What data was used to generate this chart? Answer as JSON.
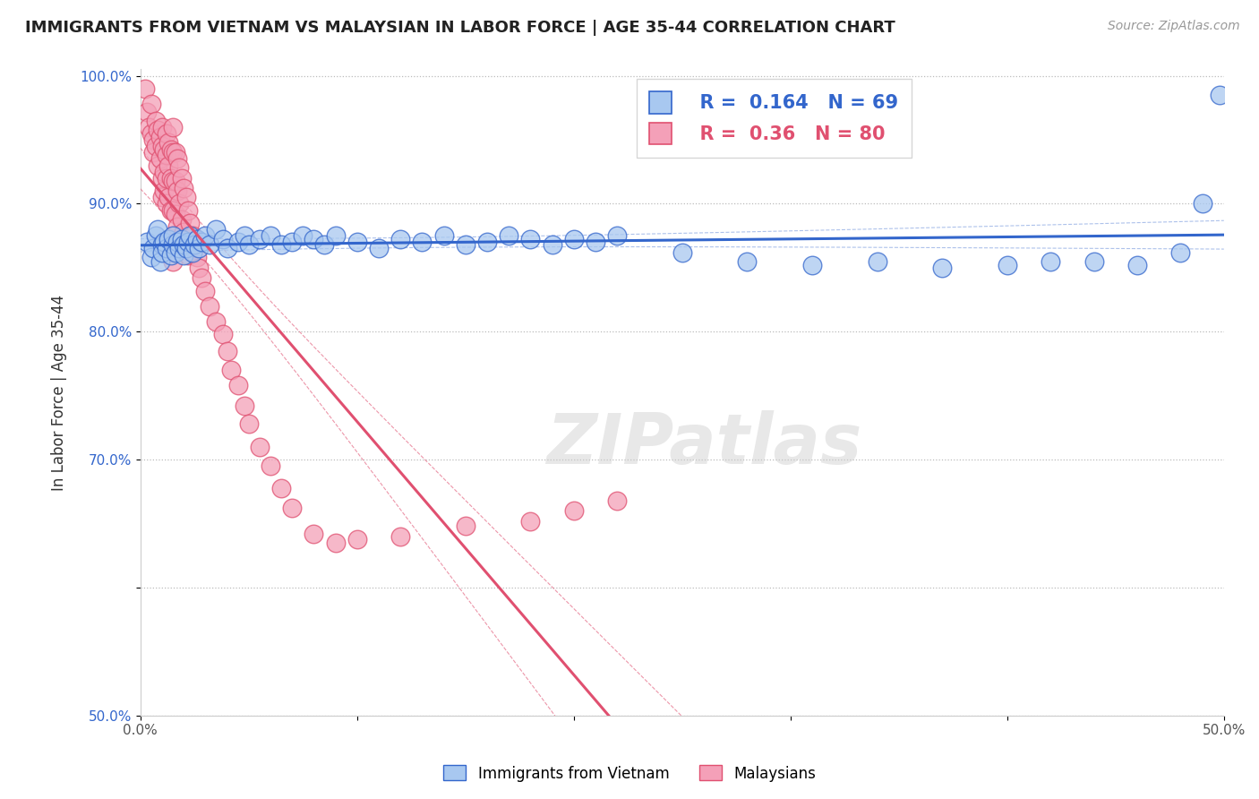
{
  "title": "IMMIGRANTS FROM VIETNAM VS MALAYSIAN IN LABOR FORCE | AGE 35-44 CORRELATION CHART",
  "source": "Source: ZipAtlas.com",
  "ylabel": "In Labor Force | Age 35-44",
  "xlim": [
    0.0,
    0.5
  ],
  "ylim": [
    0.5,
    1.005
  ],
  "xticks": [
    0.0,
    0.1,
    0.2,
    0.3,
    0.4,
    0.5
  ],
  "xticklabels": [
    "0.0%",
    "",
    "",
    "",
    "",
    "50.0%"
  ],
  "yticks": [
    0.5,
    0.6,
    0.7,
    0.8,
    0.9,
    1.0
  ],
  "yticklabels": [
    "50.0%",
    "",
    "70.0%",
    "80.0%",
    "90.0%",
    "100.0%"
  ],
  "blue_color": "#A8C8F0",
  "pink_color": "#F4A0B8",
  "blue_line_color": "#3366CC",
  "pink_line_color": "#E05070",
  "R_blue": 0.164,
  "N_blue": 69,
  "R_pink": 0.36,
  "N_pink": 80,
  "legend_label_blue": "Immigrants from Vietnam",
  "legend_label_pink": "Malaysians",
  "watermark": "ZIPatlas",
  "blue_scatter": [
    [
      0.003,
      0.87
    ],
    [
      0.005,
      0.858
    ],
    [
      0.006,
      0.865
    ],
    [
      0.007,
      0.875
    ],
    [
      0.008,
      0.88
    ],
    [
      0.009,
      0.855
    ],
    [
      0.01,
      0.868
    ],
    [
      0.01,
      0.862
    ],
    [
      0.011,
      0.87
    ],
    [
      0.012,
      0.865
    ],
    [
      0.013,
      0.872
    ],
    [
      0.014,
      0.86
    ],
    [
      0.015,
      0.868
    ],
    [
      0.015,
      0.875
    ],
    [
      0.016,
      0.862
    ],
    [
      0.017,
      0.87
    ],
    [
      0.018,
      0.865
    ],
    [
      0.019,
      0.872
    ],
    [
      0.02,
      0.86
    ],
    [
      0.02,
      0.868
    ],
    [
      0.021,
      0.865
    ],
    [
      0.022,
      0.87
    ],
    [
      0.023,
      0.875
    ],
    [
      0.024,
      0.862
    ],
    [
      0.025,
      0.868
    ],
    [
      0.026,
      0.872
    ],
    [
      0.027,
      0.865
    ],
    [
      0.028,
      0.87
    ],
    [
      0.03,
      0.875
    ],
    [
      0.032,
      0.868
    ],
    [
      0.035,
      0.88
    ],
    [
      0.038,
      0.872
    ],
    [
      0.04,
      0.865
    ],
    [
      0.045,
      0.87
    ],
    [
      0.048,
      0.875
    ],
    [
      0.05,
      0.868
    ],
    [
      0.055,
      0.872
    ],
    [
      0.06,
      0.875
    ],
    [
      0.065,
      0.868
    ],
    [
      0.07,
      0.87
    ],
    [
      0.075,
      0.875
    ],
    [
      0.08,
      0.872
    ],
    [
      0.085,
      0.868
    ],
    [
      0.09,
      0.875
    ],
    [
      0.1,
      0.87
    ],
    [
      0.11,
      0.865
    ],
    [
      0.12,
      0.872
    ],
    [
      0.13,
      0.87
    ],
    [
      0.14,
      0.875
    ],
    [
      0.15,
      0.868
    ],
    [
      0.16,
      0.87
    ],
    [
      0.17,
      0.875
    ],
    [
      0.18,
      0.872
    ],
    [
      0.19,
      0.868
    ],
    [
      0.2,
      0.872
    ],
    [
      0.21,
      0.87
    ],
    [
      0.22,
      0.875
    ],
    [
      0.25,
      0.862
    ],
    [
      0.28,
      0.855
    ],
    [
      0.31,
      0.852
    ],
    [
      0.34,
      0.855
    ],
    [
      0.37,
      0.85
    ],
    [
      0.4,
      0.852
    ],
    [
      0.42,
      0.855
    ],
    [
      0.44,
      0.855
    ],
    [
      0.46,
      0.852
    ],
    [
      0.48,
      0.862
    ],
    [
      0.49,
      0.9
    ],
    [
      0.498,
      0.985
    ]
  ],
  "pink_scatter": [
    [
      0.002,
      0.99
    ],
    [
      0.003,
      0.972
    ],
    [
      0.004,
      0.96
    ],
    [
      0.005,
      0.978
    ],
    [
      0.005,
      0.955
    ],
    [
      0.006,
      0.95
    ],
    [
      0.006,
      0.94
    ],
    [
      0.007,
      0.965
    ],
    [
      0.007,
      0.945
    ],
    [
      0.008,
      0.958
    ],
    [
      0.008,
      0.93
    ],
    [
      0.009,
      0.952
    ],
    [
      0.009,
      0.935
    ],
    [
      0.01,
      0.96
    ],
    [
      0.01,
      0.945
    ],
    [
      0.01,
      0.92
    ],
    [
      0.01,
      0.905
    ],
    [
      0.011,
      0.942
    ],
    [
      0.011,
      0.925
    ],
    [
      0.011,
      0.91
    ],
    [
      0.012,
      0.955
    ],
    [
      0.012,
      0.938
    ],
    [
      0.012,
      0.92
    ],
    [
      0.012,
      0.9
    ],
    [
      0.013,
      0.948
    ],
    [
      0.013,
      0.93
    ],
    [
      0.013,
      0.905
    ],
    [
      0.014,
      0.942
    ],
    [
      0.014,
      0.92
    ],
    [
      0.014,
      0.895
    ],
    [
      0.015,
      0.96
    ],
    [
      0.015,
      0.94
    ],
    [
      0.015,
      0.918
    ],
    [
      0.015,
      0.895
    ],
    [
      0.015,
      0.875
    ],
    [
      0.015,
      0.855
    ],
    [
      0.016,
      0.94
    ],
    [
      0.016,
      0.918
    ],
    [
      0.016,
      0.892
    ],
    [
      0.017,
      0.935
    ],
    [
      0.017,
      0.91
    ],
    [
      0.017,
      0.882
    ],
    [
      0.018,
      0.928
    ],
    [
      0.018,
      0.9
    ],
    [
      0.018,
      0.87
    ],
    [
      0.019,
      0.92
    ],
    [
      0.019,
      0.888
    ],
    [
      0.02,
      0.912
    ],
    [
      0.02,
      0.878
    ],
    [
      0.021,
      0.905
    ],
    [
      0.021,
      0.87
    ],
    [
      0.022,
      0.895
    ],
    [
      0.022,
      0.86
    ],
    [
      0.023,
      0.885
    ],
    [
      0.024,
      0.875
    ],
    [
      0.025,
      0.865
    ],
    [
      0.026,
      0.858
    ],
    [
      0.027,
      0.85
    ],
    [
      0.028,
      0.842
    ],
    [
      0.03,
      0.832
    ],
    [
      0.032,
      0.82
    ],
    [
      0.035,
      0.808
    ],
    [
      0.038,
      0.798
    ],
    [
      0.04,
      0.785
    ],
    [
      0.042,
      0.77
    ],
    [
      0.045,
      0.758
    ],
    [
      0.048,
      0.742
    ],
    [
      0.05,
      0.728
    ],
    [
      0.055,
      0.71
    ],
    [
      0.06,
      0.695
    ],
    [
      0.065,
      0.678
    ],
    [
      0.07,
      0.662
    ],
    [
      0.08,
      0.642
    ],
    [
      0.09,
      0.635
    ],
    [
      0.1,
      0.638
    ],
    [
      0.12,
      0.64
    ],
    [
      0.15,
      0.648
    ],
    [
      0.18,
      0.652
    ],
    [
      0.2,
      0.66
    ],
    [
      0.22,
      0.668
    ]
  ]
}
